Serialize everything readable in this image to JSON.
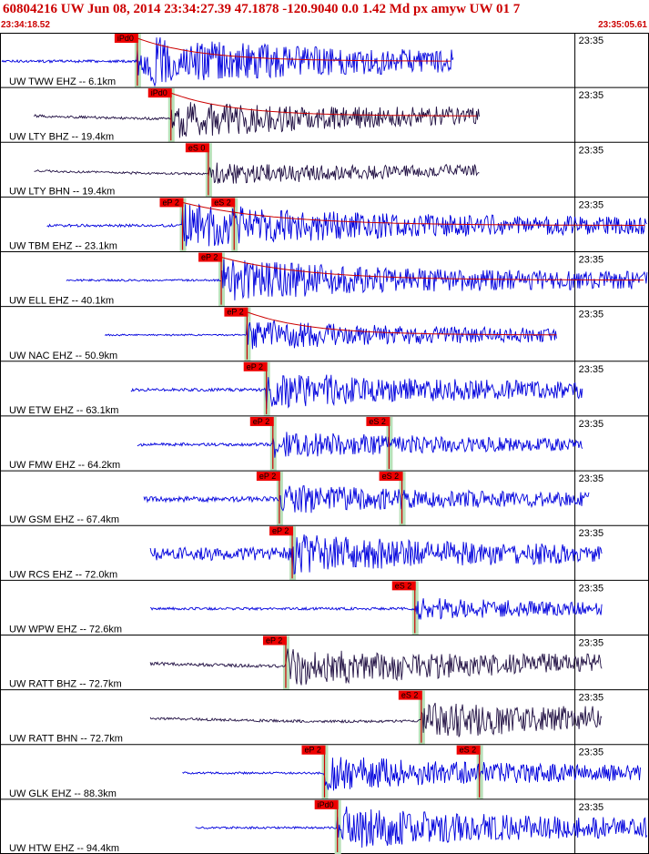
{
  "header": {
    "title": "60804216 UW Jun 08, 2014 23:34:27.39   47.1878 -120.9040  0.0 1.42 Md px amyw UW 01   7",
    "start_time": "23:34:18.52",
    "end_time": "23:35:05.61"
  },
  "colors": {
    "border": "#000000",
    "pick_box": "#ee0000",
    "pick_line": "#cc0000",
    "coda": "#cc0000",
    "p_window": "#b8e0b8",
    "trace_ehz": "#0000dd",
    "trace_dark": "#221144"
  },
  "chart_data": {
    "type": "line",
    "title": "",
    "x_range": [
      "23:34:18.52",
      "23:35:05.61"
    ],
    "minute_tick": "23:35",
    "traces": [
      {
        "label": "UW TWW EHZ -- 6.1km",
        "dark": false,
        "start": 0.0,
        "end": 0.7,
        "amp": 1.0,
        "pre": 0.05,
        "picks": [
          {
            "text": "iPd0",
            "x": 0.21
          }
        ],
        "coda": true
      },
      {
        "label": "UW LTY BHZ -- 19.4km",
        "dark": true,
        "start": 0.05,
        "end": 0.74,
        "amp": 0.75,
        "pre": 0.05,
        "picks": [
          {
            "text": "iPd0",
            "x": 0.262
          }
        ],
        "coda": true
      },
      {
        "label": "UW LTY BHN -- 19.4km",
        "dark": true,
        "start": 0.05,
        "end": 0.74,
        "amp": 0.45,
        "pre": 0.04,
        "picks": [
          {
            "text": "eS 0",
            "x": 0.32
          }
        ],
        "coda": false
      },
      {
        "label": "UW TBM EHZ -- 23.1km",
        "dark": false,
        "start": 0.07,
        "end": 1.0,
        "amp": 0.9,
        "pre": 0.05,
        "picks": [
          {
            "text": "eP 2",
            "x": 0.28
          },
          {
            "text": "eS 2",
            "x": 0.36
          }
        ],
        "coda": true
      },
      {
        "label": "UW ELL EHZ -- 40.1km",
        "dark": false,
        "start": 0.1,
        "end": 1.0,
        "amp": 0.85,
        "pre": 0.04,
        "picks": [
          {
            "text": "eP 2",
            "x": 0.34
          }
        ],
        "coda": true
      },
      {
        "label": "UW NAC EHZ -- 50.9km",
        "dark": false,
        "start": 0.16,
        "end": 0.86,
        "amp": 0.6,
        "pre": 0.03,
        "picks": [
          {
            "text": "eP 2",
            "x": 0.38
          }
        ],
        "coda": true
      },
      {
        "label": "UW ETW EHZ -- 63.1km",
        "dark": false,
        "start": 0.2,
        "end": 0.9,
        "amp": 0.75,
        "pre": 0.06,
        "picks": [
          {
            "text": "eP 2",
            "x": 0.41
          }
        ],
        "coda": false
      },
      {
        "label": "UW FMW EHZ -- 64.2km",
        "dark": false,
        "start": 0.21,
        "end": 0.9,
        "amp": 0.55,
        "pre": 0.06,
        "picks": [
          {
            "text": "eP 2",
            "x": 0.42
          },
          {
            "text": "eS 2",
            "x": 0.6
          }
        ],
        "coda": false
      },
      {
        "label": "UW GSM EHZ -- 67.4km",
        "dark": false,
        "start": 0.22,
        "end": 0.91,
        "amp": 0.6,
        "pre": 0.1,
        "picks": [
          {
            "text": "eP 2",
            "x": 0.43
          },
          {
            "text": "eS 2",
            "x": 0.62
          }
        ],
        "coda": false
      },
      {
        "label": "UW RCS EHZ -- 72.0km",
        "dark": false,
        "start": 0.23,
        "end": 0.93,
        "amp": 0.8,
        "pre": 0.25,
        "picks": [
          {
            "text": "eP 2",
            "x": 0.45
          }
        ],
        "coda": false
      },
      {
        "label": "UW WPW EHZ -- 72.6km",
        "dark": false,
        "start": 0.23,
        "end": 0.93,
        "amp": 0.45,
        "pre": 0.05,
        "picks": [
          {
            "text": "eS 2",
            "x": 0.64
          }
        ],
        "coda": false
      },
      {
        "label": "UW RATT BHZ -- 72.7km",
        "dark": true,
        "start": 0.23,
        "end": 0.93,
        "amp": 0.8,
        "pre": 0.06,
        "picks": [
          {
            "text": "eP 2",
            "x": 0.44
          }
        ],
        "coda": false
      },
      {
        "label": "UW RATT BHN -- 72.7km",
        "dark": true,
        "start": 0.23,
        "end": 0.93,
        "amp": 0.75,
        "pre": 0.05,
        "picks": [
          {
            "text": "eS 2",
            "x": 0.65
          }
        ],
        "coda": false
      },
      {
        "label": "UW GLK EHZ -- 88.3km",
        "dark": false,
        "start": 0.28,
        "end": 0.99,
        "amp": 0.7,
        "pre": 0.04,
        "picks": [
          {
            "text": "eP 2",
            "x": 0.5
          },
          {
            "text": "eS 2",
            "x": 0.74
          }
        ],
        "coda": false
      },
      {
        "label": "UW HTW EHZ -- 94.4km",
        "dark": false,
        "start": 0.3,
        "end": 1.0,
        "amp": 0.85,
        "pre": 0.04,
        "picks": [
          {
            "text": "iPd0",
            "x": 0.52
          }
        ],
        "coda": false
      }
    ]
  }
}
